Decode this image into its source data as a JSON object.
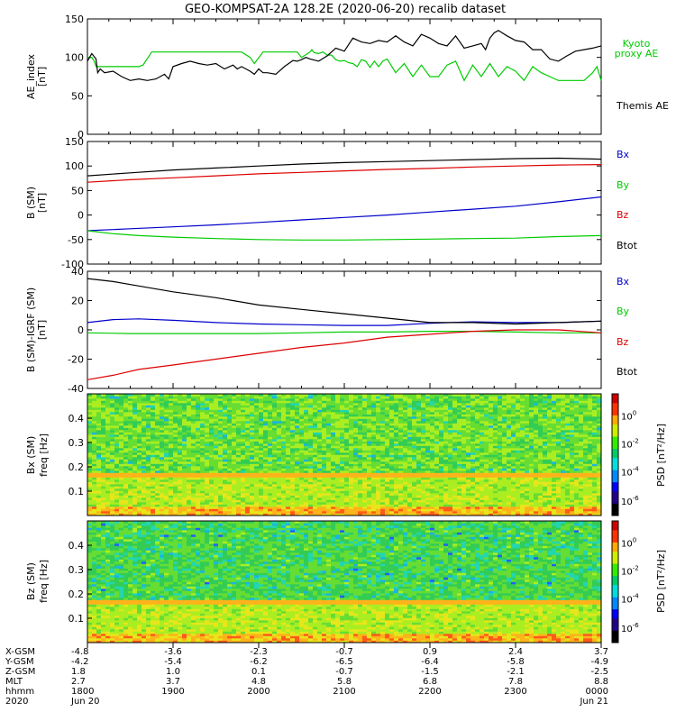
{
  "title": "GEO-KOMPSAT-2A 128.2E (2020-06-20) recalib dataset",
  "colors": {
    "black": "#000000",
    "green": "#00cc00",
    "blue": "#0000cc",
    "red": "#dd0000"
  },
  "chart_data": [
    {
      "type": "line",
      "ylabel": "AE_index",
      "yunit": "[nT]",
      "ylim": [
        0,
        150
      ],
      "yticks": [
        0,
        50,
        100,
        150
      ],
      "xlim_hours": [
        18,
        24
      ],
      "series": [
        {
          "name": "Kyoto proxy AE",
          "color": "green",
          "x": [
            18.0,
            18.05,
            18.08,
            18.1,
            18.2,
            18.6,
            18.65,
            18.75,
            19.0,
            19.15,
            19.2,
            19.5,
            19.7,
            19.8,
            19.9,
            19.95,
            20.05,
            20.3,
            20.35,
            20.4,
            20.45,
            20.5,
            20.6,
            20.62,
            20.65,
            20.7,
            20.75,
            20.8,
            20.85,
            20.9,
            20.95,
            21.0,
            21.05,
            21.1,
            21.15,
            21.2,
            21.25,
            21.3,
            21.35,
            21.4,
            21.45,
            21.5,
            21.6,
            21.7,
            21.8,
            21.9,
            22.0,
            22.1,
            22.2,
            22.3,
            22.4,
            22.5,
            22.6,
            22.7,
            22.8,
            22.9,
            23.0,
            23.1,
            23.2,
            23.3,
            23.4,
            23.5,
            23.6,
            23.7,
            23.8,
            23.9,
            23.95,
            24.0
          ],
          "y": [
            100,
            100,
            95,
            88,
            88,
            88,
            90,
            107,
            107,
            107,
            107,
            107,
            107,
            107,
            100,
            92,
            107,
            107,
            107,
            107,
            107,
            100,
            107,
            110,
            106,
            105,
            107,
            103,
            103,
            97,
            95,
            96,
            93,
            92,
            88,
            97,
            95,
            87,
            95,
            88,
            95,
            98,
            80,
            92,
            75,
            90,
            75,
            75,
            90,
            95,
            70,
            90,
            75,
            92,
            75,
            88,
            82,
            70,
            88,
            80,
            75,
            70,
            70,
            70,
            70,
            80,
            88,
            70
          ]
        },
        {
          "name": "Themis AE",
          "color": "black",
          "x": [
            18.0,
            18.05,
            18.1,
            18.12,
            18.15,
            18.2,
            18.3,
            18.4,
            18.5,
            18.6,
            18.7,
            18.8,
            18.9,
            18.95,
            19.0,
            19.1,
            19.2,
            19.3,
            19.4,
            19.5,
            19.6,
            19.7,
            19.75,
            19.8,
            19.9,
            19.95,
            20.0,
            20.05,
            20.1,
            20.2,
            20.3,
            20.35,
            20.4,
            20.45,
            20.5,
            20.55,
            20.6,
            20.7,
            20.8,
            20.9,
            21.0,
            21.1,
            21.2,
            21.3,
            21.4,
            21.5,
            21.6,
            21.7,
            21.8,
            21.9,
            22.0,
            22.1,
            22.2,
            22.3,
            22.4,
            22.5,
            22.6,
            22.65,
            22.7,
            22.75,
            22.8,
            22.9,
            23.0,
            23.1,
            23.2,
            23.3,
            23.4,
            23.5,
            23.6,
            23.7,
            23.8,
            23.9,
            24.0
          ],
          "y": [
            95,
            105,
            98,
            80,
            85,
            80,
            82,
            75,
            70,
            72,
            70,
            72,
            78,
            72,
            88,
            92,
            95,
            92,
            90,
            92,
            85,
            90,
            85,
            88,
            82,
            78,
            85,
            80,
            80,
            78,
            88,
            92,
            96,
            95,
            97,
            100,
            98,
            95,
            102,
            112,
            108,
            125,
            120,
            118,
            122,
            120,
            128,
            120,
            115,
            130,
            125,
            118,
            115,
            128,
            112,
            115,
            118,
            110,
            125,
            132,
            135,
            128,
            122,
            120,
            110,
            110,
            98,
            95,
            102,
            108,
            110,
            112,
            115
          ]
        }
      ],
      "legend": [
        "Kyoto proxy AE",
        "Themis AE"
      ]
    },
    {
      "type": "line",
      "ylabel": "B (SM)",
      "yunit": "[nT]",
      "ylim": [
        -100,
        150
      ],
      "yticks": [
        -100,
        -50,
        0,
        50,
        100,
        150
      ],
      "series": [
        {
          "name": "Bx",
          "color": "blue",
          "x": [
            18,
            18.5,
            19,
            19.5,
            20,
            20.5,
            21,
            21.5,
            22,
            22.5,
            23,
            23.5,
            24
          ],
          "y": [
            -32,
            -28,
            -24,
            -20,
            -15,
            -10,
            -5,
            0,
            6,
            12,
            18,
            27,
            37
          ]
        },
        {
          "name": "By",
          "color": "green",
          "x": [
            18,
            18.3,
            18.6,
            19,
            19.5,
            20,
            20.5,
            21,
            21.5,
            22,
            22.5,
            23,
            23.5,
            24
          ],
          "y": [
            -32,
            -38,
            -42,
            -45,
            -48,
            -50,
            -51,
            -51,
            -50,
            -49,
            -48,
            -47,
            -44,
            -42
          ]
        },
        {
          "name": "Bz",
          "color": "red",
          "x": [
            18,
            18.5,
            19,
            19.5,
            20,
            20.5,
            21,
            21.5,
            22,
            22.5,
            23,
            23.5,
            24
          ],
          "y": [
            67,
            72,
            76,
            80,
            84,
            87,
            90,
            93,
            95,
            98,
            100,
            102,
            103
          ]
        },
        {
          "name": "Btot",
          "color": "black",
          "x": [
            18,
            18.5,
            19,
            19.5,
            20,
            20.5,
            21,
            21.5,
            22,
            22.5,
            23,
            23.5,
            24
          ],
          "y": [
            80,
            86,
            92,
            96,
            100,
            104,
            107,
            109,
            111,
            113,
            115,
            116,
            114
          ]
        }
      ],
      "legend": [
        "Bx",
        "By",
        "Bz",
        "Btot"
      ]
    },
    {
      "type": "line",
      "ylabel": "B (SM)-IGRF (SM)",
      "yunit": "[nT]",
      "ylim": [
        -40,
        40
      ],
      "yticks": [
        -40,
        -20,
        0,
        20,
        40
      ],
      "series": [
        {
          "name": "Bx",
          "color": "blue",
          "x": [
            18,
            18.3,
            18.6,
            19,
            19.5,
            20,
            20.5,
            21,
            21.5,
            22,
            22.5,
            23,
            23.5,
            24
          ],
          "y": [
            5,
            7,
            7.5,
            6.5,
            5,
            4,
            3.5,
            3,
            3,
            4.5,
            5.5,
            5,
            5,
            6
          ]
        },
        {
          "name": "By",
          "color": "green",
          "x": [
            18,
            18.5,
            19,
            19.5,
            20,
            20.5,
            21,
            21.5,
            22,
            22.5,
            23,
            23.5,
            24
          ],
          "y": [
            -2,
            -2.5,
            -2.5,
            -2.5,
            -2.5,
            -2,
            -1.5,
            -1.5,
            -1,
            -1,
            -1.5,
            -2,
            -2
          ]
        },
        {
          "name": "Bz",
          "color": "red",
          "x": [
            18,
            18.3,
            18.6,
            19,
            19.5,
            20,
            20.5,
            21,
            21.5,
            22,
            22.5,
            23,
            23.5,
            24
          ],
          "y": [
            -34,
            -31,
            -27,
            -24,
            -20,
            -16,
            -12,
            -9,
            -5,
            -3,
            -1,
            0,
            0,
            -2
          ]
        },
        {
          "name": "Btot",
          "color": "black",
          "x": [
            18,
            18.3,
            18.6,
            19,
            19.5,
            20,
            20.5,
            21,
            21.5,
            22,
            22.5,
            23,
            23.5,
            24
          ],
          "y": [
            35,
            33,
            30,
            26,
            22,
            17,
            14,
            11,
            8,
            5,
            5,
            4,
            5,
            6
          ]
        }
      ],
      "legend": [
        "Bx",
        "By",
        "Bz",
        "Btot"
      ]
    },
    {
      "type": "heatmap",
      "ylabel": "Bx (SM)",
      "yunit": "freq [Hz]",
      "yticks": [
        0.1,
        0.2,
        0.3,
        0.4
      ],
      "ylim": [
        0,
        0.5
      ],
      "colorbar": {
        "label": "PSD [nT²/Hz]",
        "ticks": [
          "10^0",
          "10^-2",
          "10^-4",
          "10^-6"
        ]
      },
      "bands": [
        {
          "f_min": 0.0,
          "f_max": 0.04,
          "level": "yellow-green, red patches"
        },
        {
          "f_min": 0.04,
          "f_max": 0.16,
          "level": "yellow-green"
        },
        {
          "f_min": 0.16,
          "f_max": 0.175,
          "level": "yellow-orange line"
        },
        {
          "f_min": 0.175,
          "f_max": 0.5,
          "level": "green with cyan and blue"
        }
      ]
    },
    {
      "type": "heatmap",
      "ylabel": "Bz (SM)",
      "yunit": "freq [Hz]",
      "yticks": [
        0.1,
        0.2,
        0.3,
        0.4
      ],
      "ylim": [
        0,
        0.5
      ],
      "colorbar": {
        "label": "PSD [nT²/Hz]",
        "ticks": [
          "10^0",
          "10^-2",
          "10^-4",
          "10^-6"
        ]
      },
      "bands": [
        {
          "f_min": 0.0,
          "f_max": 0.04,
          "level": "yellow-orange"
        },
        {
          "f_min": 0.04,
          "f_max": 0.16,
          "level": "green-yellow"
        },
        {
          "f_min": 0.16,
          "f_max": 0.17,
          "level": "yellow line"
        },
        {
          "f_min": 0.17,
          "f_max": 0.5,
          "level": "cyan-green with blue"
        }
      ]
    }
  ],
  "ephemeris": {
    "row_labels": [
      "X-GSM",
      "Y-GSM",
      "Z-GSM",
      "MLT",
      "hhmm",
      "2020"
    ],
    "columns": [
      {
        "values": [
          "-4.8",
          "-4.2",
          "1.8",
          "2.7",
          "1800",
          "Jun 20"
        ]
      },
      {
        "values": [
          "-3.6",
          "-5.4",
          "1.0",
          "3.7",
          "1900",
          ""
        ]
      },
      {
        "values": [
          "-2.3",
          "-6.2",
          "0.1",
          "4.8",
          "2000",
          ""
        ]
      },
      {
        "values": [
          "-0.7",
          "-6.5",
          "-0.7",
          "5.8",
          "2100",
          ""
        ]
      },
      {
        "values": [
          "0.9",
          "-6.4",
          "-1.5",
          "6.8",
          "2200",
          ""
        ]
      },
      {
        "values": [
          "2.4",
          "-5.8",
          "-2.1",
          "7.8",
          "2300",
          ""
        ]
      },
      {
        "values": [
          "3.7",
          "-4.9",
          "-2.5",
          "8.8",
          "0000",
          "Jun 21"
        ]
      }
    ]
  }
}
